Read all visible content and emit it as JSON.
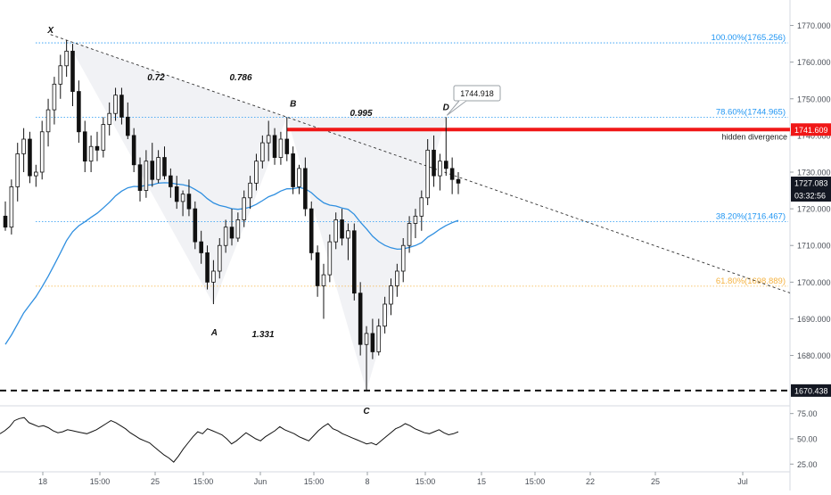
{
  "chart_data": [
    {
      "type": "candlestick",
      "panel": "price",
      "y_axis": {
        "ticks": [
          "1770.000",
          "1760.000",
          "1750.000",
          "1740.000",
          "1730.000",
          "1720.000",
          "1710.000",
          "1700.000",
          "1690.000",
          "1680.000"
        ],
        "range": [
          1667,
          1778
        ]
      },
      "x_axis": {
        "ticks": [
          "18",
          "15:00",
          "25",
          "15:00",
          "Jun",
          "15:00",
          "8",
          "15:00",
          "15",
          "15:00",
          "22",
          "25",
          "Jul"
        ]
      },
      "price_badges": {
        "horizontal_level": "1741.609",
        "last_price": "1727.083",
        "countdown": "03:32:56",
        "support_level": "1670.438"
      },
      "fib_levels": [
        {
          "label": "100.00%(1765.256)",
          "value": 1765.256,
          "color": "#2196f3"
        },
        {
          "label": "78.60%(1744.965)",
          "value": 1744.965,
          "color": "#2196f3"
        },
        {
          "label": "38.20%(1716.467)",
          "value": 1716.467,
          "color": "#2196f3"
        },
        {
          "label": "61.80%(1698.889)",
          "value": 1698.889,
          "color": "#f5b342"
        }
      ],
      "pattern_points": [
        {
          "label": "X",
          "price": 1766
        },
        {
          "label": "A",
          "price": 1694
        },
        {
          "label": "B",
          "price": 1745
        },
        {
          "label": "C",
          "price": 1670.4
        },
        {
          "label": "D",
          "price": 1745
        }
      ],
      "ratios": [
        "0.72",
        "0.786",
        "0.995",
        "1.331"
      ],
      "annotations": {
        "callout_value": "1744.918",
        "divergence_note": "hidden divergence"
      },
      "candles": [
        [
          1718,
          1722,
          1714,
          1715
        ],
        [
          1715,
          1728,
          1713,
          1726
        ],
        [
          1726,
          1738,
          1722,
          1735
        ],
        [
          1735,
          1742,
          1730,
          1739
        ],
        [
          1739,
          1741,
          1727,
          1729
        ],
        [
          1729,
          1732,
          1726,
          1730
        ],
        [
          1730,
          1744,
          1728,
          1741
        ],
        [
          1741,
          1750,
          1737,
          1747
        ],
        [
          1747,
          1756,
          1743,
          1754
        ],
        [
          1754,
          1762,
          1750,
          1759
        ],
        [
          1759,
          1766,
          1756,
          1763
        ],
        [
          1763,
          1765,
          1748,
          1752
        ],
        [
          1752,
          1755,
          1738,
          1741
        ],
        [
          1741,
          1744,
          1730,
          1733
        ],
        [
          1733,
          1740,
          1730,
          1737
        ],
        [
          1737,
          1741,
          1733,
          1736
        ],
        [
          1736,
          1745,
          1734,
          1743
        ],
        [
          1743,
          1749,
          1740,
          1746
        ],
        [
          1746,
          1753,
          1744,
          1751
        ],
        [
          1751,
          1753,
          1743,
          1745
        ],
        [
          1745,
          1749,
          1739,
          1740
        ],
        [
          1740,
          1742,
          1730,
          1732
        ],
        [
          1732,
          1734,
          1722,
          1725
        ],
        [
          1725,
          1736,
          1723,
          1733
        ],
        [
          1733,
          1738,
          1726,
          1728
        ],
        [
          1728,
          1736,
          1727,
          1734
        ],
        [
          1734,
          1737,
          1728,
          1729
        ],
        [
          1729,
          1731,
          1723,
          1726
        ],
        [
          1726,
          1729,
          1720,
          1722
        ],
        [
          1722,
          1725,
          1718,
          1724
        ],
        [
          1724,
          1728,
          1718,
          1720
        ],
        [
          1720,
          1722,
          1709,
          1711
        ],
        [
          1711,
          1714,
          1705,
          1708
        ],
        [
          1708,
          1710,
          1698,
          1700
        ],
        [
          1700,
          1706,
          1694,
          1703
        ],
        [
          1703,
          1712,
          1701,
          1710
        ],
        [
          1710,
          1717,
          1708,
          1715
        ],
        [
          1715,
          1720,
          1710,
          1712
        ],
        [
          1712,
          1719,
          1711,
          1717
        ],
        [
          1717,
          1725,
          1715,
          1723
        ],
        [
          1723,
          1729,
          1720,
          1727
        ],
        [
          1727,
          1735,
          1725,
          1733
        ],
        [
          1733,
          1740,
          1731,
          1738
        ],
        [
          1738,
          1744,
          1733,
          1740
        ],
        [
          1740,
          1742,
          1732,
          1734
        ],
        [
          1734,
          1741,
          1732,
          1739
        ],
        [
          1739,
          1745,
          1733,
          1735
        ],
        [
          1735,
          1737,
          1724,
          1726
        ],
        [
          1726,
          1732,
          1724,
          1731
        ],
        [
          1731,
          1734,
          1718,
          1720
        ],
        [
          1720,
          1722,
          1706,
          1708
        ],
        [
          1708,
          1710,
          1696,
          1699
        ],
        [
          1699,
          1705,
          1690,
          1702
        ],
        [
          1702,
          1713,
          1700,
          1711
        ],
        [
          1711,
          1719,
          1709,
          1717
        ],
        [
          1717,
          1720,
          1710,
          1712
        ],
        [
          1712,
          1716,
          1706,
          1714
        ],
        [
          1714,
          1716,
          1695,
          1697
        ],
        [
          1697,
          1700,
          1680,
          1683
        ],
        [
          1683,
          1688,
          1670.4,
          1686
        ],
        [
          1686,
          1690,
          1679,
          1681
        ],
        [
          1681,
          1690,
          1680,
          1688
        ],
        [
          1688,
          1696,
          1686,
          1694
        ],
        [
          1694,
          1701,
          1691,
          1699
        ],
        [
          1699,
          1705,
          1696,
          1703
        ],
        [
          1703,
          1712,
          1700,
          1710
        ],
        [
          1710,
          1718,
          1708,
          1716
        ],
        [
          1716,
          1720,
          1712,
          1718
        ],
        [
          1718,
          1725,
          1714,
          1723
        ],
        [
          1723,
          1739,
          1721,
          1736
        ],
        [
          1736,
          1740,
          1726,
          1729
        ],
        [
          1729,
          1735,
          1725,
          1733
        ],
        [
          1733,
          1745,
          1729,
          1731
        ],
        [
          1731,
          1734,
          1724,
          1728
        ],
        [
          1728,
          1730,
          1724,
          1727
        ]
      ]
    },
    {
      "type": "line",
      "panel": "oscillator",
      "y_axis": {
        "ticks": [
          "75.00",
          "50.00",
          "25.00"
        ],
        "range": [
          20,
          80
        ]
      },
      "values": [
        55,
        58,
        62,
        68,
        70,
        71,
        66,
        64,
        62,
        63,
        61,
        58,
        56,
        57,
        59,
        58,
        57,
        56,
        55,
        57,
        59,
        62,
        65,
        68,
        66,
        63,
        60,
        56,
        53,
        50,
        48,
        46,
        42,
        38,
        34,
        31,
        27,
        33,
        40,
        46,
        52,
        57,
        55,
        60,
        58,
        56,
        54,
        50,
        45,
        48,
        52,
        56,
        53,
        50,
        48,
        52,
        55,
        58,
        62,
        59,
        57,
        55,
        52,
        50,
        48,
        53,
        58,
        62,
        65,
        60,
        58,
        55,
        53,
        51,
        49,
        47,
        45,
        46,
        44,
        48,
        52,
        56,
        60,
        62,
        65,
        63,
        60,
        58,
        56,
        55,
        57,
        59,
        56,
        54,
        55,
        57
      ]
    }
  ]
}
